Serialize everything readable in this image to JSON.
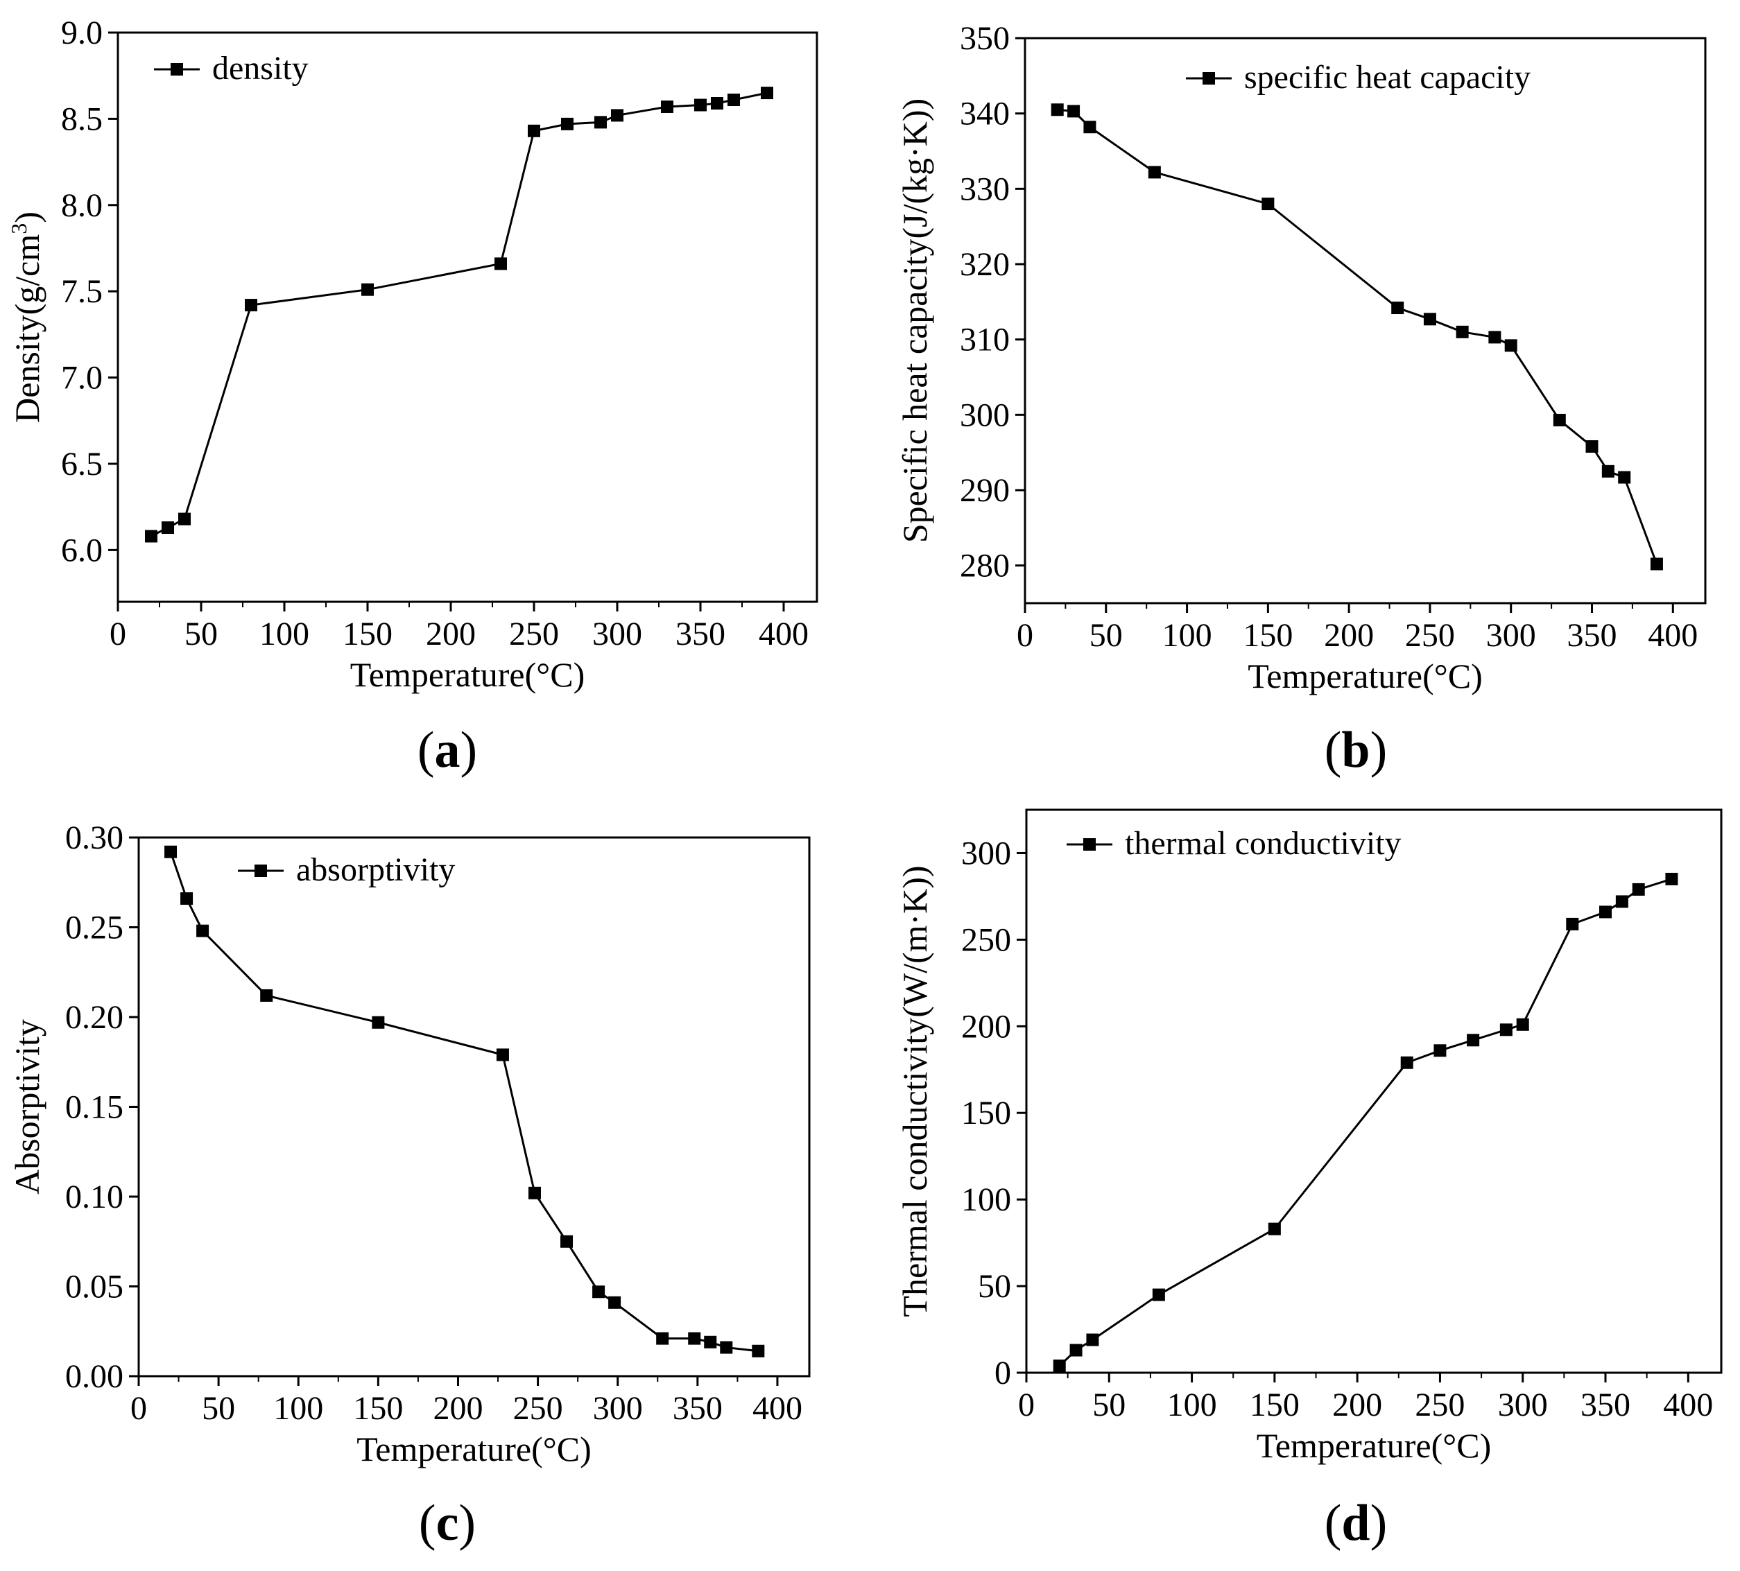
{
  "chart_data": [
    {
      "id": "a",
      "type": "line",
      "panel_label": "a",
      "legend": "density",
      "xlabel": "Temperature(°C)",
      "ylabel_parts": [
        "Density(g/cm",
        "3",
        ")"
      ],
      "xlim": [
        0,
        420
      ],
      "ylim": [
        5.7,
        9.0
      ],
      "xticks": [
        0,
        50,
        100,
        150,
        200,
        250,
        300,
        350,
        400
      ],
      "yticks": [
        6.0,
        6.5,
        7.0,
        7.5,
        8.0,
        8.5,
        9.0
      ],
      "ytick_decimals": 1,
      "x": [
        20,
        30,
        40,
        80,
        150,
        230,
        250,
        270,
        290,
        300,
        330,
        350,
        360,
        370,
        390
      ],
      "y": [
        6.08,
        6.13,
        6.18,
        7.42,
        7.51,
        7.66,
        8.43,
        8.47,
        8.48,
        8.52,
        8.57,
        8.58,
        8.59,
        8.61,
        8.65
      ]
    },
    {
      "id": "b",
      "type": "line",
      "panel_label": "b",
      "legend": "specific heat capacity",
      "xlabel": "Temperature(°C)",
      "ylabel_parts": [
        "Specific heat capacity(J/(kg·K))"
      ],
      "xlim": [
        0,
        420
      ],
      "ylim": [
        275,
        350
      ],
      "xticks": [
        0,
        50,
        100,
        150,
        200,
        250,
        300,
        350,
        400
      ],
      "yticks": [
        280,
        290,
        300,
        310,
        320,
        330,
        340,
        350
      ],
      "ytick_decimals": 0,
      "x": [
        20,
        30,
        40,
        80,
        150,
        230,
        250,
        270,
        290,
        300,
        330,
        350,
        360,
        370,
        390
      ],
      "y": [
        340.5,
        340.3,
        338.2,
        332.2,
        328.0,
        314.2,
        312.7,
        311.0,
        310.3,
        309.2,
        299.3,
        295.8,
        292.5,
        291.7,
        280.2
      ]
    },
    {
      "id": "c",
      "type": "line",
      "panel_label": "c",
      "legend": "absorptivity",
      "xlabel": "Temperature(°C)",
      "ylabel_parts": [
        "Absorptivity"
      ],
      "xlim": [
        0,
        420
      ],
      "ylim": [
        0,
        0.3
      ],
      "xticks": [
        0,
        50,
        100,
        150,
        200,
        250,
        300,
        350,
        400
      ],
      "yticks": [
        0.0,
        0.05,
        0.1,
        0.15,
        0.2,
        0.25,
        0.3
      ],
      "ytick_decimals": 2,
      "x": [
        20,
        30,
        40,
        80,
        150,
        228,
        248,
        268,
        288,
        298,
        328,
        348,
        358,
        368,
        388
      ],
      "y": [
        0.292,
        0.266,
        0.248,
        0.212,
        0.197,
        0.179,
        0.102,
        0.075,
        0.047,
        0.041,
        0.021,
        0.021,
        0.019,
        0.016,
        0.014
      ]
    },
    {
      "id": "d",
      "type": "line",
      "panel_label": "d",
      "legend": "thermal conductivity",
      "xlabel": "Temperature(°C)",
      "ylabel_parts": [
        "Thermal conductivity(W/(m·K))"
      ],
      "xlim": [
        0,
        420
      ],
      "ylim": [
        0,
        325
      ],
      "xticks": [
        0,
        50,
        100,
        150,
        200,
        250,
        300,
        350,
        400
      ],
      "yticks": [
        0,
        50,
        100,
        150,
        200,
        250,
        300
      ],
      "ytick_decimals": 0,
      "x": [
        20,
        30,
        40,
        80,
        150,
        230,
        250,
        270,
        290,
        300,
        330,
        350,
        360,
        370,
        390
      ],
      "y": [
        4,
        13,
        19,
        45,
        83,
        179,
        186,
        192,
        198,
        201,
        259,
        266,
        272,
        279,
        285
      ]
    }
  ]
}
